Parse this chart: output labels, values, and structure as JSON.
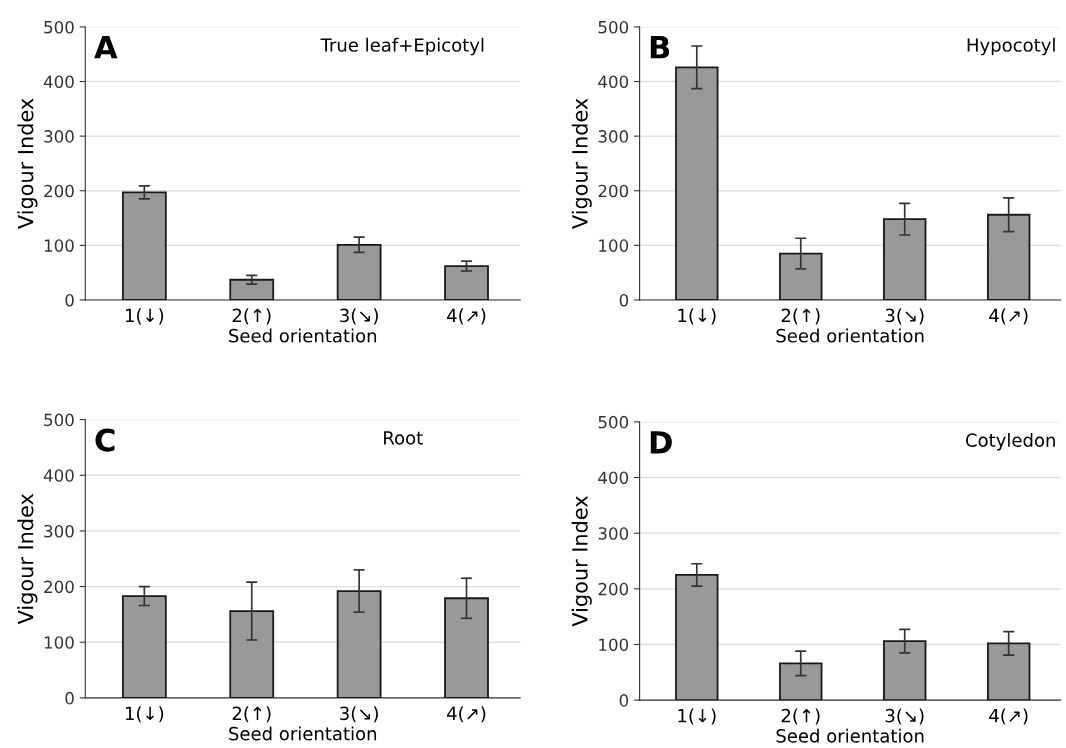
{
  "chart_data": [
    {
      "type": "bar",
      "title": "A",
      "subtitle": "True leaf+Epicotyl",
      "xlabel": "Seed orientation",
      "ylabel": "Vigour Index",
      "categories": [
        "1(↓)",
        "2(↑)",
        "3(↘)",
        "4(↗)"
      ],
      "values": [
        197,
        37,
        101,
        62
      ],
      "errors": [
        12,
        8,
        14,
        9
      ],
      "color": "#999999",
      "ylim": [
        0,
        500
      ],
      "yticks": [
        0,
        100,
        200,
        300,
        400,
        500
      ],
      "grid": "y"
    },
    {
      "type": "bar",
      "title": "B",
      "subtitle": "Hypocotyl",
      "xlabel": "Seed orientation",
      "ylabel": "Vigour Index",
      "categories": [
        "1(↓)",
        "2(↑)",
        "3(↘)",
        "4(↗)"
      ],
      "values": [
        426,
        85,
        148,
        156
      ],
      "errors": [
        39,
        28,
        29,
        31
      ],
      "color": "#999999",
      "ylim": [
        0,
        500
      ],
      "yticks": [
        0,
        100,
        200,
        300,
        400,
        500
      ],
      "grid": "y"
    },
    {
      "type": "bar",
      "title": "C",
      "subtitle": "Root",
      "xlabel": "Seed orientation",
      "ylabel": "Vigour Index",
      "categories": [
        "1(↓)",
        "2(↑)",
        "3(↘)",
        "4(↗)"
      ],
      "values": [
        183,
        156,
        192,
        179
      ],
      "errors": [
        17,
        52,
        38,
        36
      ],
      "color": "#999999",
      "ylim": [
        0,
        500
      ],
      "yticks": [
        0,
        100,
        200,
        300,
        400,
        500
      ],
      "grid": "y"
    },
    {
      "type": "bar",
      "title": "D",
      "subtitle": "Cotyledon",
      "xlabel": "Seed orientation",
      "ylabel": "Vigour Index",
      "categories": [
        "1(↓)",
        "2(↑)",
        "3(↘)",
        "4(↗)"
      ],
      "values": [
        225,
        66,
        106,
        102
      ],
      "errors": [
        20,
        22,
        21,
        21
      ],
      "color": "#999999",
      "ylim": [
        0,
        500
      ],
      "yticks": [
        0,
        100,
        200,
        300,
        400,
        500
      ],
      "grid": "y"
    }
  ]
}
